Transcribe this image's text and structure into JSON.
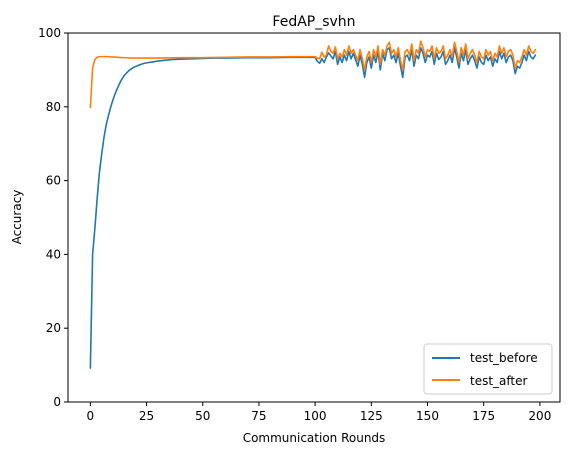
{
  "chart_data": {
    "type": "line",
    "title": "FedAP_svhn",
    "xlabel": "Communication Rounds",
    "ylabel": "Accuracy",
    "xlim": [
      -9.95,
      208.95
    ],
    "ylim": [
      0,
      100
    ],
    "xticks": [
      0,
      25,
      50,
      75,
      100,
      125,
      150,
      175,
      200
    ],
    "yticks": [
      0,
      20,
      40,
      60,
      80,
      100
    ],
    "legend": "lower-right",
    "grid": false,
    "colors": {
      "test_before": "#1f77b4",
      "test_after": "#ff7f0e"
    },
    "series": [
      {
        "name": "test_before",
        "color": "#1f77b4",
        "points": [
          [
            0,
            9.2
          ],
          [
            1,
            40.0
          ],
          [
            2,
            47.0
          ],
          [
            3,
            55.0
          ],
          [
            4,
            62.0
          ],
          [
            5,
            67.0
          ],
          [
            6,
            71.5
          ],
          [
            7,
            75.0
          ],
          [
            8,
            77.5
          ],
          [
            9,
            79.8
          ],
          [
            10,
            81.8
          ],
          [
            11,
            83.5
          ],
          [
            12,
            85.0
          ],
          [
            13,
            86.3
          ],
          [
            14,
            87.5
          ],
          [
            15,
            88.4
          ],
          [
            16,
            89.1
          ],
          [
            17,
            89.7
          ],
          [
            18,
            90.2
          ],
          [
            19,
            90.6
          ],
          [
            20,
            90.9
          ],
          [
            22,
            91.4
          ],
          [
            24,
            91.8
          ],
          [
            26,
            92.0
          ],
          [
            28,
            92.2
          ],
          [
            30,
            92.4
          ],
          [
            33,
            92.6
          ],
          [
            36,
            92.8
          ],
          [
            40,
            92.9
          ],
          [
            45,
            93.0
          ],
          [
            50,
            93.1
          ],
          [
            55,
            93.2
          ],
          [
            60,
            93.2
          ],
          [
            70,
            93.3
          ],
          [
            80,
            93.3
          ],
          [
            90,
            93.4
          ],
          [
            100,
            93.4
          ],
          [
            101,
            92.3
          ],
          [
            102,
            91.8
          ],
          [
            103,
            93.0
          ],
          [
            104,
            92.0
          ],
          [
            105,
            93.5
          ],
          [
            106,
            94.6
          ],
          [
            107,
            93.8
          ],
          [
            108,
            93.0
          ],
          [
            109,
            95.0
          ],
          [
            110,
            91.5
          ],
          [
            111,
            93.5
          ],
          [
            112,
            92.0
          ],
          [
            113,
            94.0
          ],
          [
            114,
            92.5
          ],
          [
            115,
            95.0
          ],
          [
            116,
            93.0
          ],
          [
            117,
            94.5
          ],
          [
            118,
            92.8
          ],
          [
            119,
            91.0
          ],
          [
            120,
            94.0
          ],
          [
            121,
            91.5
          ],
          [
            122,
            88.0
          ],
          [
            123,
            92.0
          ],
          [
            124,
            93.5
          ],
          [
            125,
            90.5
          ],
          [
            126,
            94.0
          ],
          [
            127,
            92.0
          ],
          [
            128,
            95.0
          ],
          [
            129,
            90.0
          ],
          [
            130,
            94.5
          ],
          [
            131,
            92.5
          ],
          [
            132,
            95.5
          ],
          [
            133,
            96.0
          ],
          [
            134,
            93.0
          ],
          [
            135,
            94.0
          ],
          [
            136,
            92.0
          ],
          [
            137,
            94.5
          ],
          [
            138,
            91.0
          ],
          [
            139,
            88.0
          ],
          [
            140,
            93.5
          ],
          [
            141,
            94.0
          ],
          [
            142,
            92.5
          ],
          [
            143,
            95.5
          ],
          [
            144,
            91.0
          ],
          [
            145,
            94.0
          ],
          [
            146,
            93.0
          ],
          [
            147,
            96.0
          ],
          [
            148,
            94.5
          ],
          [
            149,
            92.0
          ],
          [
            150,
            94.0
          ],
          [
            151,
            93.5
          ],
          [
            152,
            95.0
          ],
          [
            153,
            91.5
          ],
          [
            154,
            94.5
          ],
          [
            155,
            92.8
          ],
          [
            156,
            93.5
          ],
          [
            157,
            95.0
          ],
          [
            158,
            91.5
          ],
          [
            159,
            92.5
          ],
          [
            160,
            94.0
          ],
          [
            161,
            92.0
          ],
          [
            162,
            96.0
          ],
          [
            163,
            93.5
          ],
          [
            164,
            90.5
          ],
          [
            165,
            94.5
          ],
          [
            166,
            92.5
          ],
          [
            167,
            95.5
          ],
          [
            168,
            91.5
          ],
          [
            169,
            93.0
          ],
          [
            170,
            94.0
          ],
          [
            171,
            92.5
          ],
          [
            172,
            90.5
          ],
          [
            173,
            93.5
          ],
          [
            174,
            92.0
          ],
          [
            175,
            91.5
          ],
          [
            176,
            94.0
          ],
          [
            177,
            92.5
          ],
          [
            178,
            93.5
          ],
          [
            179,
            91.0
          ],
          [
            180,
            93.0
          ],
          [
            181,
            92.0
          ],
          [
            182,
            95.0
          ],
          [
            183,
            93.0
          ],
          [
            184,
            94.5
          ],
          [
            185,
            92.0
          ],
          [
            186,
            93.5
          ],
          [
            187,
            94.0
          ],
          [
            188,
            92.5
          ],
          [
            189,
            89.0
          ],
          [
            190,
            91.0
          ],
          [
            191,
            90.5
          ],
          [
            192,
            92.0
          ],
          [
            193,
            94.0
          ],
          [
            194,
            92.5
          ],
          [
            195,
            95.0
          ],
          [
            196,
            93.5
          ],
          [
            197,
            93.0
          ],
          [
            198,
            94.0
          ]
        ]
      },
      {
        "name": "test_after",
        "color": "#ff7f0e",
        "points": [
          [
            0,
            79.8
          ],
          [
            1,
            90.5
          ],
          [
            2,
            92.8
          ],
          [
            3,
            93.4
          ],
          [
            4,
            93.6
          ],
          [
            5,
            93.6
          ],
          [
            6,
            93.6
          ],
          [
            7,
            93.6
          ],
          [
            8,
            93.6
          ],
          [
            9,
            93.5
          ],
          [
            10,
            93.5
          ],
          [
            12,
            93.4
          ],
          [
            14,
            93.3
          ],
          [
            16,
            93.3
          ],
          [
            18,
            93.2
          ],
          [
            20,
            93.2
          ],
          [
            25,
            93.2
          ],
          [
            30,
            93.2
          ],
          [
            40,
            93.3
          ],
          [
            50,
            93.3
          ],
          [
            60,
            93.4
          ],
          [
            70,
            93.5
          ],
          [
            80,
            93.5
          ],
          [
            90,
            93.6
          ],
          [
            100,
            93.6
          ],
          [
            101,
            93.2
          ],
          [
            102,
            93.0
          ],
          [
            103,
            94.8
          ],
          [
            104,
            93.5
          ],
          [
            105,
            94.0
          ],
          [
            106,
            96.5
          ],
          [
            107,
            95.0
          ],
          [
            108,
            94.5
          ],
          [
            109,
            96.2
          ],
          [
            110,
            93.0
          ],
          [
            111,
            94.5
          ],
          [
            112,
            93.5
          ],
          [
            113,
            95.5
          ],
          [
            114,
            94.0
          ],
          [
            115,
            96.5
          ],
          [
            116,
            94.5
          ],
          [
            117,
            95.5
          ],
          [
            118,
            94.0
          ],
          [
            119,
            92.5
          ],
          [
            120,
            95.5
          ],
          [
            121,
            93.0
          ],
          [
            122,
            90.0
          ],
          [
            123,
            93.5
          ],
          [
            124,
            95.0
          ],
          [
            125,
            92.0
          ],
          [
            126,
            95.5
          ],
          [
            127,
            93.5
          ],
          [
            128,
            96.5
          ],
          [
            129,
            91.5
          ],
          [
            130,
            95.5
          ],
          [
            131,
            94.0
          ],
          [
            132,
            96.5
          ],
          [
            133,
            97.5
          ],
          [
            134,
            94.5
          ],
          [
            135,
            95.5
          ],
          [
            136,
            93.5
          ],
          [
            137,
            96.0
          ],
          [
            138,
            92.5
          ],
          [
            139,
            90.0
          ],
          [
            140,
            95.0
          ],
          [
            141,
            95.5
          ],
          [
            142,
            94.0
          ],
          [
            143,
            97.0
          ],
          [
            144,
            92.5
          ],
          [
            145,
            95.5
          ],
          [
            146,
            94.5
          ],
          [
            147,
            97.8
          ],
          [
            148,
            96.0
          ],
          [
            149,
            93.5
          ],
          [
            150,
            95.5
          ],
          [
            151,
            95.0
          ],
          [
            152,
            96.5
          ],
          [
            153,
            93.0
          ],
          [
            154,
            96.0
          ],
          [
            155,
            94.5
          ],
          [
            156,
            95.0
          ],
          [
            157,
            96.5
          ],
          [
            158,
            93.0
          ],
          [
            159,
            94.0
          ],
          [
            160,
            95.5
          ],
          [
            161,
            93.5
          ],
          [
            162,
            97.5
          ],
          [
            163,
            95.0
          ],
          [
            164,
            92.0
          ],
          [
            165,
            96.0
          ],
          [
            166,
            94.0
          ],
          [
            167,
            97.0
          ],
          [
            168,
            93.0
          ],
          [
            169,
            94.5
          ],
          [
            170,
            95.5
          ],
          [
            171,
            94.0
          ],
          [
            172,
            92.0
          ],
          [
            173,
            95.0
          ],
          [
            174,
            93.5
          ],
          [
            175,
            93.0
          ],
          [
            176,
            95.5
          ],
          [
            177,
            94.0
          ],
          [
            178,
            95.0
          ],
          [
            179,
            92.5
          ],
          [
            180,
            94.5
          ],
          [
            181,
            93.5
          ],
          [
            182,
            96.5
          ],
          [
            183,
            94.5
          ],
          [
            184,
            96.0
          ],
          [
            185,
            93.5
          ],
          [
            186,
            95.0
          ],
          [
            187,
            95.5
          ],
          [
            188,
            94.0
          ],
          [
            189,
            90.5
          ],
          [
            190,
            92.5
          ],
          [
            191,
            92.0
          ],
          [
            192,
            93.5
          ],
          [
            193,
            95.5
          ],
          [
            194,
            94.0
          ],
          [
            195,
            96.5
          ],
          [
            196,
            95.0
          ],
          [
            197,
            94.5
          ],
          [
            198,
            95.5
          ]
        ]
      }
    ]
  }
}
